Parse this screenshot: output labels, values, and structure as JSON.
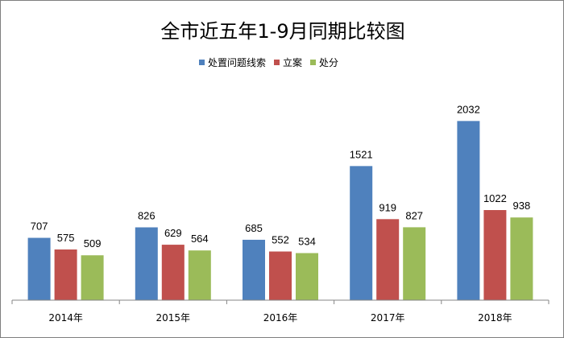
{
  "chart_data": {
    "type": "bar",
    "title": "全市近五年1-9月同期比较图",
    "categories": [
      "2014年",
      "2015年",
      "2016年",
      "2017年",
      "2018年"
    ],
    "series": [
      {
        "name": "处置问题线索",
        "color": "#4f81bd",
        "values": [
          707,
          826,
          685,
          1521,
          2032
        ]
      },
      {
        "name": "立案",
        "color": "#c0504d",
        "values": [
          575,
          629,
          552,
          919,
          1022
        ]
      },
      {
        "name": "处分",
        "color": "#9bbb59",
        "values": [
          509,
          564,
          534,
          827,
          938
        ]
      }
    ],
    "ylim": [
      0,
      2300
    ],
    "grid": false,
    "legend_position": "top-right",
    "data_labels": true
  }
}
